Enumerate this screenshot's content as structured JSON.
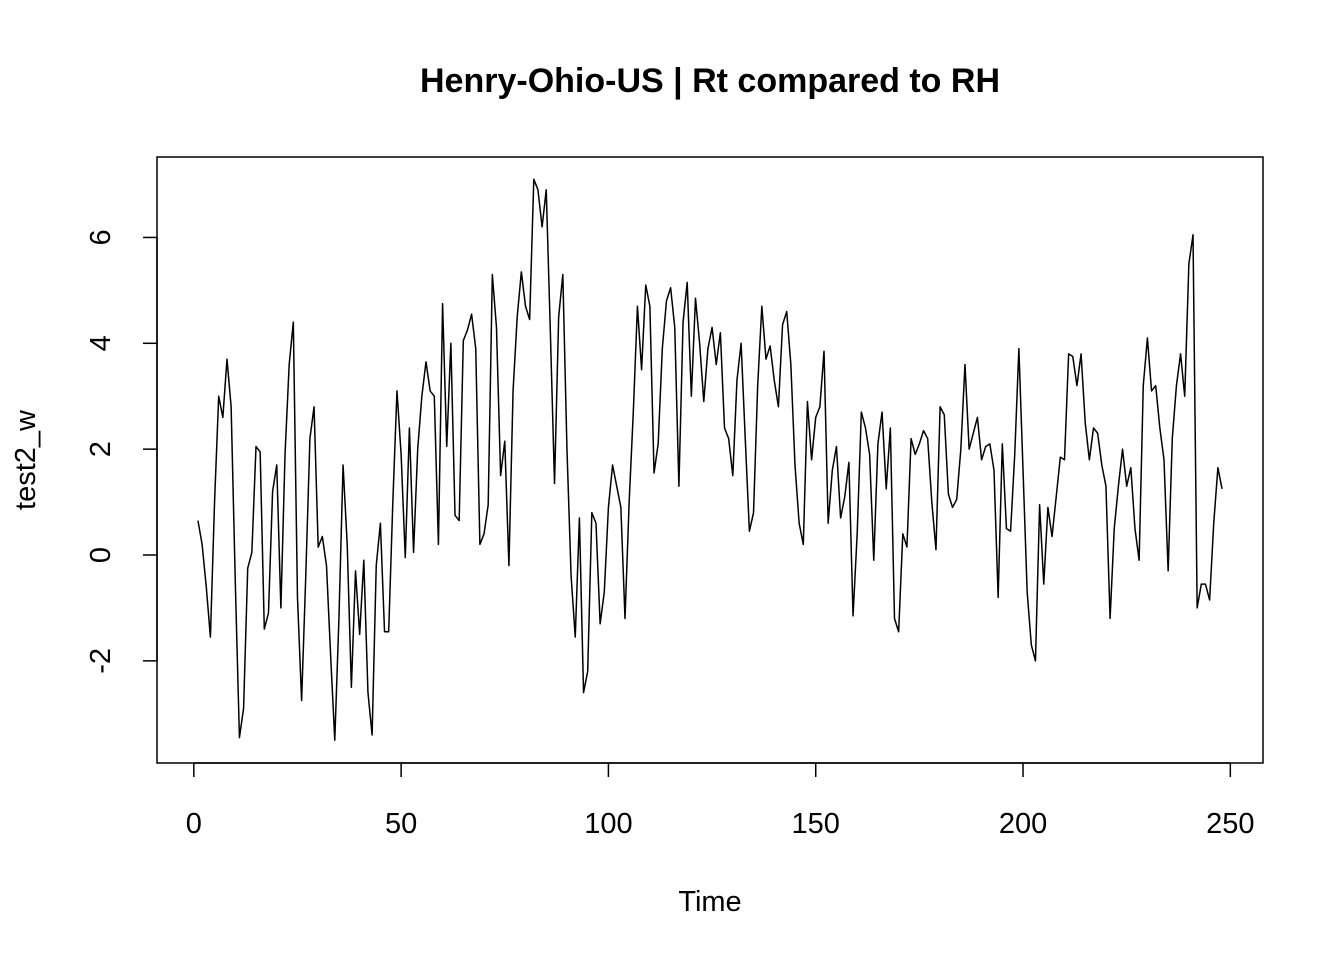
{
  "chart_data": {
    "type": "line",
    "title": "Henry-Ohio-US | Rt compared to RH",
    "xlabel": "Time",
    "ylabel": "test2_w",
    "color": "#000000",
    "x": [
      1,
      2,
      3,
      4,
      5,
      6,
      7,
      8,
      9,
      10,
      11,
      12,
      13,
      14,
      15,
      16,
      17,
      18,
      19,
      20,
      21,
      22,
      23,
      24,
      25,
      26,
      27,
      28,
      29,
      30,
      31,
      32,
      33,
      34,
      35,
      36,
      37,
      38,
      39,
      40,
      41,
      42,
      43,
      44,
      45,
      46,
      47,
      48,
      49,
      50,
      51,
      52,
      53,
      54,
      55,
      56,
      57,
      58,
      59,
      60,
      61,
      62,
      63,
      64,
      65,
      66,
      67,
      68,
      69,
      70,
      71,
      72,
      73,
      74,
      75,
      76,
      77,
      78,
      79,
      80,
      81,
      82,
      83,
      84,
      85,
      86,
      87,
      88,
      89,
      90,
      91,
      92,
      93,
      94,
      95,
      96,
      97,
      98,
      99,
      100,
      101,
      102,
      103,
      104,
      105,
      106,
      107,
      108,
      109,
      110,
      111,
      112,
      113,
      114,
      115,
      116,
      117,
      118,
      119,
      120,
      121,
      122,
      123,
      124,
      125,
      126,
      127,
      128,
      129,
      130,
      131,
      132,
      133,
      134,
      135,
      136,
      137,
      138,
      139,
      140,
      141,
      142,
      143,
      144,
      145,
      146,
      147,
      148,
      149,
      150,
      151,
      152,
      153,
      154,
      155,
      156,
      157,
      158,
      159,
      160,
      161,
      162,
      163,
      164,
      165,
      166,
      167,
      168,
      169,
      170,
      171,
      172,
      173,
      174,
      175,
      176,
      177,
      178,
      179,
      180,
      181,
      182,
      183,
      184,
      185,
      186,
      187,
      188,
      189,
      190,
      191,
      192,
      193,
      194,
      195,
      196,
      197,
      198,
      199,
      200,
      201,
      202,
      203,
      204,
      205,
      206,
      207,
      208,
      209,
      210,
      211,
      212,
      213,
      214,
      215,
      216,
      217,
      218,
      219,
      220,
      221,
      222,
      223,
      224,
      225,
      226,
      227,
      228,
      229,
      230,
      231,
      232,
      233,
      234,
      235,
      236,
      237,
      238,
      239,
      240,
      241,
      242,
      243,
      244,
      245,
      246,
      247,
      248
    ],
    "values": [
      0.65,
      0.2,
      -0.6,
      -1.55,
      1.0,
      3.0,
      2.6,
      3.7,
      2.8,
      -0.5,
      -3.45,
      -2.9,
      -0.25,
      0.05,
      2.05,
      1.95,
      -1.4,
      -1.1,
      1.2,
      1.7,
      -1.0,
      1.9,
      3.6,
      4.4,
      -0.8,
      -2.75,
      -0.4,
      2.2,
      2.8,
      0.15,
      0.35,
      -0.2,
      -1.9,
      -3.5,
      -1.2,
      1.7,
      0.2,
      -2.5,
      -0.3,
      -1.5,
      -0.1,
      -2.6,
      -3.4,
      -0.2,
      0.6,
      -1.45,
      -1.45,
      1.0,
      3.1,
      1.9,
      -0.05,
      2.4,
      0.05,
      2.0,
      3.0,
      3.65,
      3.1,
      3.0,
      0.2,
      4.75,
      2.05,
      4.0,
      0.75,
      0.65,
      4.05,
      4.25,
      4.55,
      3.9,
      0.2,
      0.4,
      0.95,
      5.3,
      4.3,
      1.5,
      2.15,
      -0.2,
      3.1,
      4.5,
      5.35,
      4.7,
      4.45,
      7.1,
      6.9,
      6.2,
      6.9,
      4.2,
      1.35,
      4.5,
      5.3,
      2.0,
      -0.4,
      -1.55,
      0.7,
      -2.6,
      -2.2,
      0.8,
      0.6,
      -1.3,
      -0.7,
      0.9,
      1.7,
      1.3,
      0.9,
      -1.2,
      1.0,
      2.7,
      4.7,
      3.5,
      5.1,
      4.7,
      1.55,
      2.1,
      3.9,
      4.8,
      5.05,
      4.3,
      1.3,
      4.4,
      5.15,
      3.0,
      4.85,
      4.0,
      2.9,
      3.9,
      4.3,
      3.6,
      4.2,
      2.4,
      2.2,
      1.5,
      3.3,
      4.0,
      2.2,
      0.45,
      0.8,
      3.2,
      4.7,
      3.7,
      3.95,
      3.3,
      2.8,
      4.35,
      4.6,
      3.6,
      1.7,
      0.6,
      0.2,
      2.9,
      1.8,
      2.6,
      2.8,
      3.85,
      0.6,
      1.6,
      2.05,
      0.7,
      1.1,
      1.75,
      -1.15,
      0.4,
      2.7,
      2.4,
      1.9,
      -0.1,
      2.1,
      2.7,
      1.25,
      2.4,
      -1.2,
      -1.45,
      0.4,
      0.15,
      2.2,
      1.9,
      2.1,
      2.35,
      2.2,
      1.0,
      0.1,
      2.8,
      2.65,
      1.15,
      0.9,
      1.05,
      2.0,
      3.6,
      2.0,
      2.3,
      2.6,
      1.8,
      2.05,
      2.1,
      1.6,
      -0.8,
      2.1,
      0.5,
      0.45,
      1.9,
      3.9,
      1.6,
      -0.7,
      -1.7,
      -2.0,
      0.95,
      -0.55,
      0.9,
      0.35,
      1.1,
      1.85,
      1.8,
      3.8,
      3.75,
      3.2,
      3.8,
      2.5,
      1.8,
      2.4,
      2.3,
      1.7,
      1.3,
      -1.2,
      0.5,
      1.3,
      2.0,
      1.3,
      1.65,
      0.5,
      -0.1,
      3.2,
      4.1,
      3.1,
      3.2,
      2.4,
      1.8,
      -0.3,
      2.2,
      3.2,
      3.8,
      3.0,
      5.5,
      6.05,
      -1.0,
      -0.55,
      -0.55,
      -0.85,
      0.6,
      1.65,
      1.25
    ],
    "xlim": [
      -8.88,
      257.88
    ],
    "ylim": [
      -3.93,
      7.52
    ],
    "xticks": [
      0,
      50,
      100,
      150,
      200,
      250
    ],
    "yticks": [
      -2,
      0,
      2,
      4,
      6
    ]
  }
}
